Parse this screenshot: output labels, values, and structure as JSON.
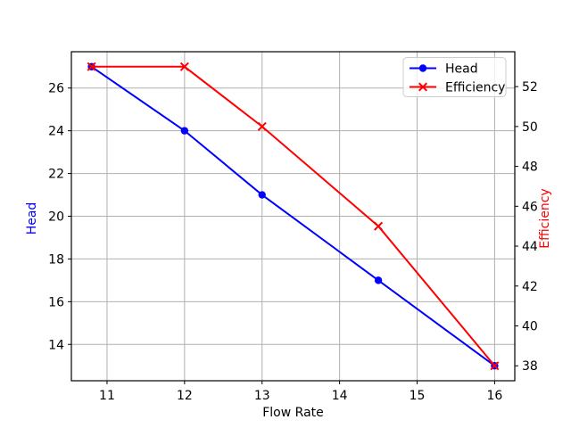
{
  "chart_data": {
    "type": "line",
    "title": "",
    "xlabel": "Flow Rate",
    "ylabel_left": "Head",
    "ylabel_right": "Efficiency",
    "x": [
      10.8,
      12,
      13,
      14.5,
      16
    ],
    "series": [
      {
        "name": "Head",
        "axis": "left",
        "color": "#0000ff",
        "marker": "circle",
        "values": [
          27,
          24,
          21,
          17,
          13
        ]
      },
      {
        "name": "Efficiency",
        "axis": "right",
        "color": "#ff0000",
        "marker": "x",
        "values": [
          53,
          53,
          50,
          45,
          38
        ]
      }
    ],
    "xlim": [
      10.54,
      16.26
    ],
    "ylim_left": [
      12.3,
      27.7
    ],
    "ylim_right": [
      37.25,
      53.75
    ],
    "xticks": [
      11,
      12,
      13,
      14,
      15,
      16
    ],
    "yticks_left": [
      14,
      16,
      18,
      20,
      22,
      24,
      26
    ],
    "yticks_right": [
      38,
      40,
      42,
      44,
      46,
      48,
      50,
      52
    ],
    "grid": true,
    "grid_color": "#b0b0b0",
    "spine_color": "#000000",
    "tick_label_color": "#000000",
    "axis_label_colors": {
      "left": "#0000ff",
      "right": "#ff0000",
      "x": "#000000"
    },
    "legend": {
      "position": "upper right",
      "background": "rgba(255,255,255,0.8)",
      "border_color": "#cccccc",
      "entries": [
        "Head",
        "Efficiency"
      ]
    }
  }
}
